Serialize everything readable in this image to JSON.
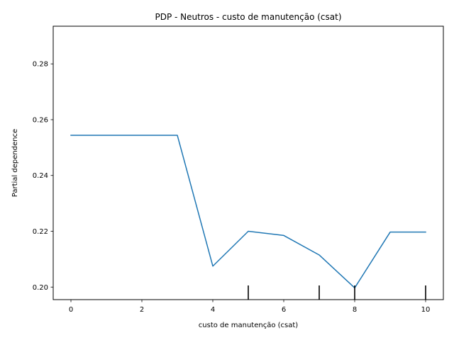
{
  "chart_data": {
    "type": "line",
    "title": "PDP - Neutros - custo de manutenção (csat)",
    "xlabel": "custo de manutenção (csat)",
    "ylabel": "Partial dependence",
    "xlim": [
      -0.5,
      10.5
    ],
    "ylim": [
      0.1955,
      0.2935
    ],
    "x_ticks": [
      0,
      2,
      4,
      6,
      8,
      10
    ],
    "y_ticks": [
      0.2,
      0.22,
      0.24,
      0.26,
      0.28
    ],
    "x_tick_labels": [
      "0",
      "2",
      "4",
      "6",
      "8",
      "10"
    ],
    "y_tick_labels": [
      "0.20",
      "0.22",
      "0.24",
      "0.26",
      "0.28"
    ],
    "series": [
      {
        "color": "#1f77b4",
        "x": [
          0,
          1,
          2,
          3,
          4,
          5,
          6,
          7,
          8,
          9,
          10
        ],
        "y": [
          0.2544,
          0.2544,
          0.2544,
          0.2544,
          0.2075,
          0.22,
          0.2185,
          0.2115,
          0.1997,
          0.2197,
          0.2197
        ]
      }
    ],
    "rug_marks": [
      5,
      7,
      8,
      10
    ],
    "grid": false,
    "legend": "none"
  }
}
